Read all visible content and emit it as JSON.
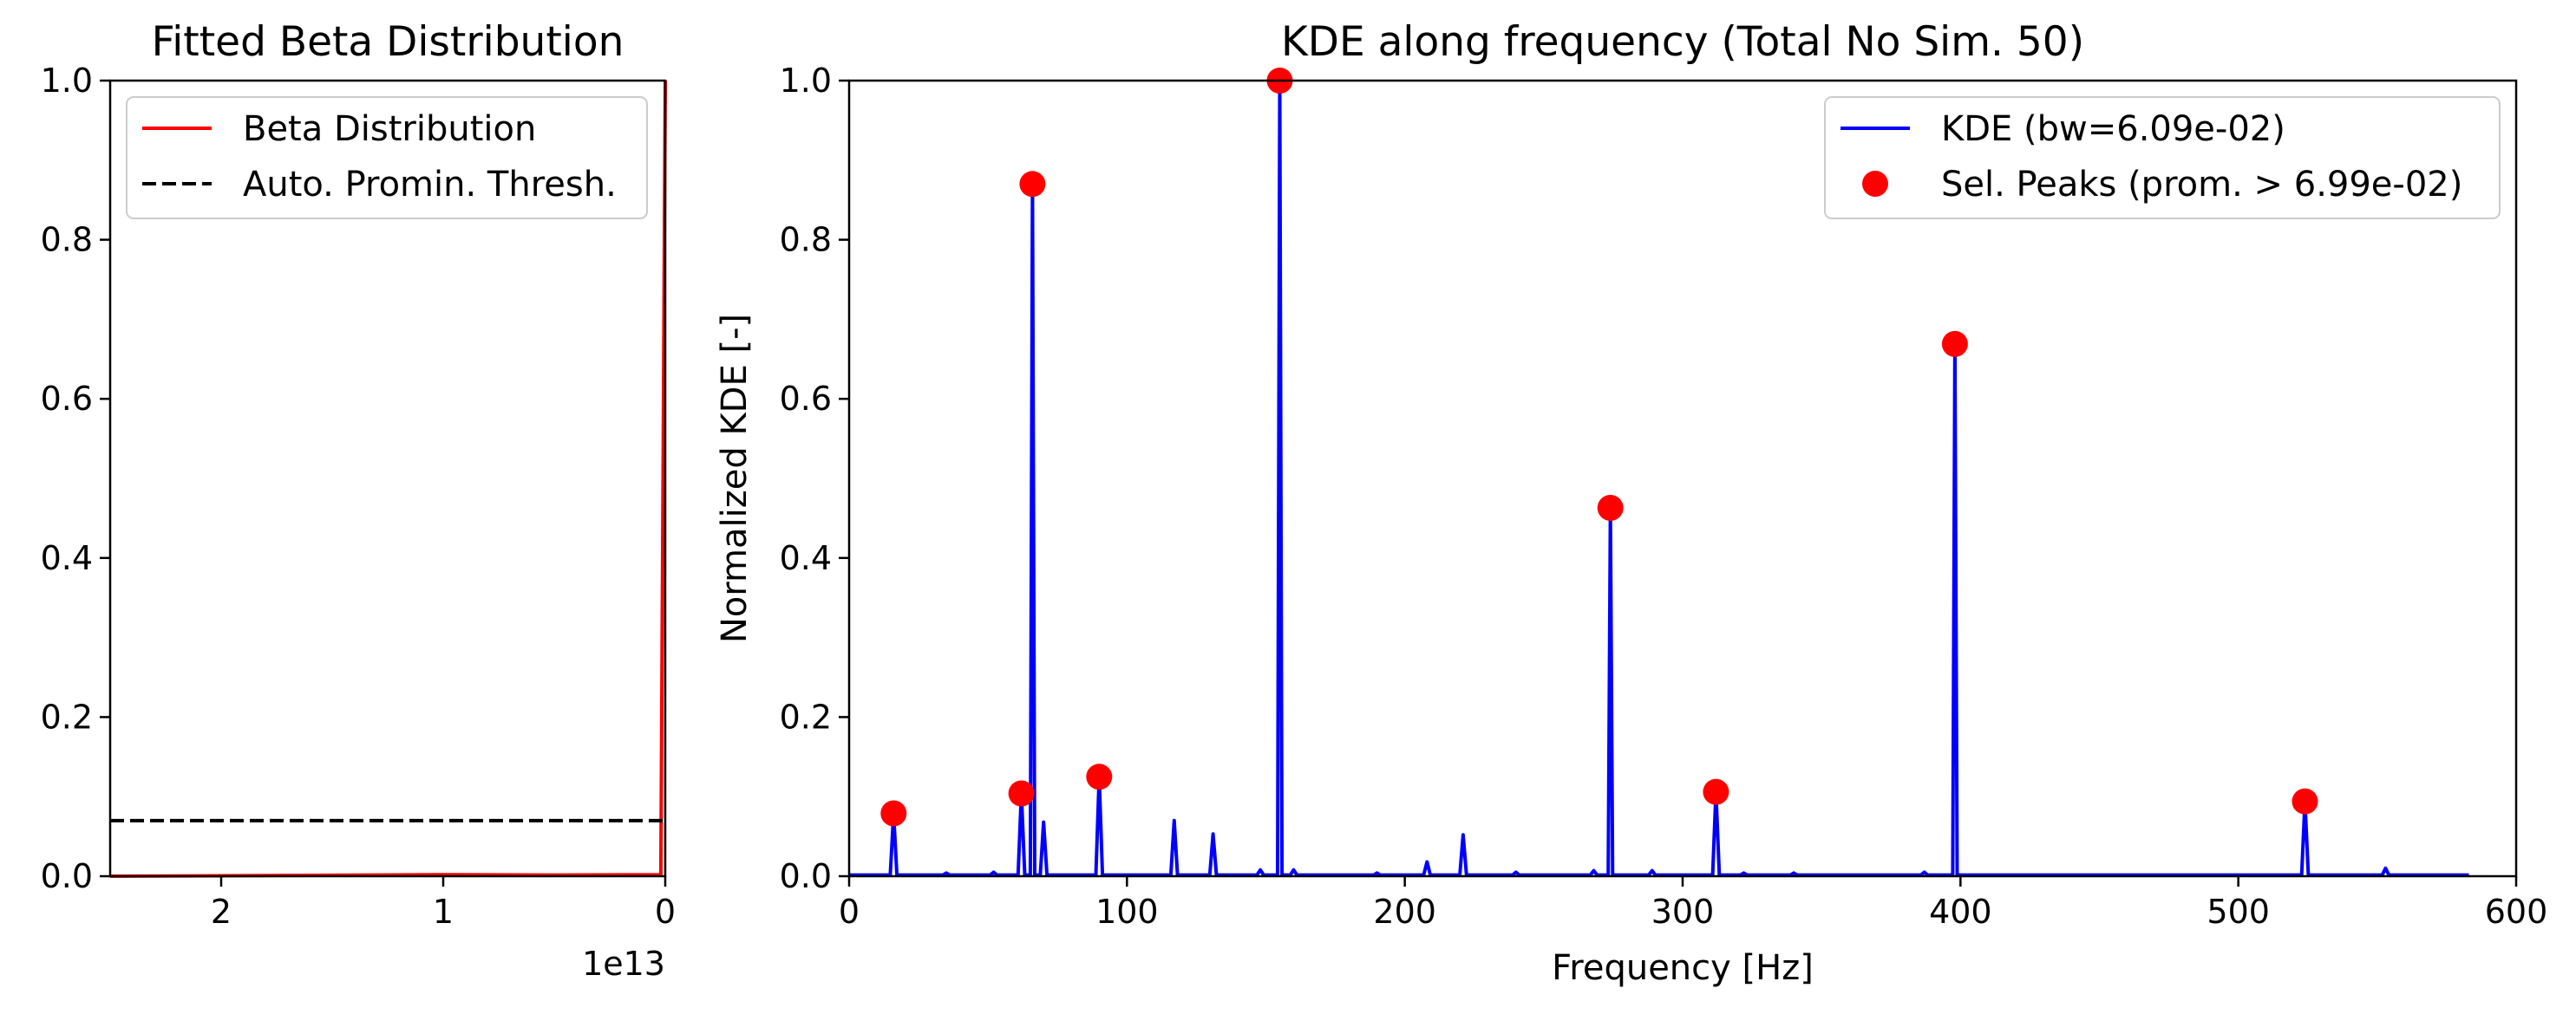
{
  "chart_data": [
    {
      "type": "line",
      "title": "Fitted Beta Distribution",
      "xlabel": "",
      "ylabel": "",
      "x_offset_label": "1e13",
      "x_inverted": true,
      "xlim": [
        2.5,
        0
      ],
      "ylim": [
        0,
        1.0
      ],
      "x_ticks": [
        2,
        1,
        0
      ],
      "y_ticks": [
        0.0,
        0.2,
        0.4,
        0.6,
        0.8,
        1.0
      ],
      "y_tick_labels": [
        "0.0",
        "0.2",
        "0.4",
        "0.6",
        "0.8",
        "1.0"
      ],
      "legend_position": "upper-left",
      "grid": false,
      "series": [
        {
          "name": "Beta Distribution",
          "style": "solid",
          "color": "#ff0000",
          "points": [
            [
              2.5,
              0.0
            ],
            [
              2.0,
              0.0005
            ],
            [
              1.0,
              0.002
            ],
            [
              0.5,
              0.0015
            ],
            [
              0.02,
              0.002
            ],
            [
              0.0,
              1.0
            ]
          ]
        },
        {
          "name": "Auto. Promin. Thresh.",
          "style": "dashed",
          "color": "#000000",
          "y_value": 0.0699
        }
      ]
    },
    {
      "type": "line",
      "title": "KDE along frequency (Total No Sim. 50)",
      "xlabel": "Frequency [Hz]",
      "ylabel": "Normalized KDE [-]",
      "xlim": [
        0,
        600
      ],
      "ylim": [
        0,
        1.0
      ],
      "x_ticks": [
        0,
        100,
        200,
        300,
        400,
        500,
        600
      ],
      "y_ticks": [
        0.0,
        0.2,
        0.4,
        0.6,
        0.8,
        1.0
      ],
      "y_tick_labels": [
        "0.0",
        "0.2",
        "0.4",
        "0.6",
        "0.8",
        "1.0"
      ],
      "x_range_data": [
        0,
        583
      ],
      "legend_position": "upper-right",
      "grid": false,
      "series": [
        {
          "name": "KDE (bw=6.09e-02)",
          "color": "#0000ff",
          "spikes": [
            [
              16,
              0.079
            ],
            [
              35,
              0.004
            ],
            [
              52,
              0.005
            ],
            [
              62,
              0.104
            ],
            [
              66,
              0.87
            ],
            [
              70,
              0.068
            ],
            [
              90,
              0.125
            ],
            [
              117,
              0.07
            ],
            [
              131,
              0.053
            ],
            [
              148,
              0.008
            ],
            [
              155,
              1.0
            ],
            [
              160,
              0.008
            ],
            [
              190,
              0.004
            ],
            [
              208,
              0.018
            ],
            [
              221,
              0.052
            ],
            [
              240,
              0.005
            ],
            [
              268,
              0.007
            ],
            [
              274,
              0.463
            ],
            [
              289,
              0.007
            ],
            [
              312,
              0.106
            ],
            [
              322,
              0.004
            ],
            [
              340,
              0.004
            ],
            [
              387,
              0.005
            ],
            [
              398,
              0.669
            ],
            [
              524,
              0.094
            ],
            [
              553,
              0.01
            ]
          ]
        },
        {
          "name": "Sel. Peaks (prom. > 6.99e-02)",
          "color": "#ff0000",
          "marker": "circle",
          "x": [
            16,
            62,
            66,
            90,
            155,
            274,
            312,
            398,
            524
          ],
          "y": [
            0.079,
            0.104,
            0.87,
            0.125,
            1.0,
            0.463,
            0.106,
            0.669,
            0.094
          ]
        }
      ]
    }
  ]
}
